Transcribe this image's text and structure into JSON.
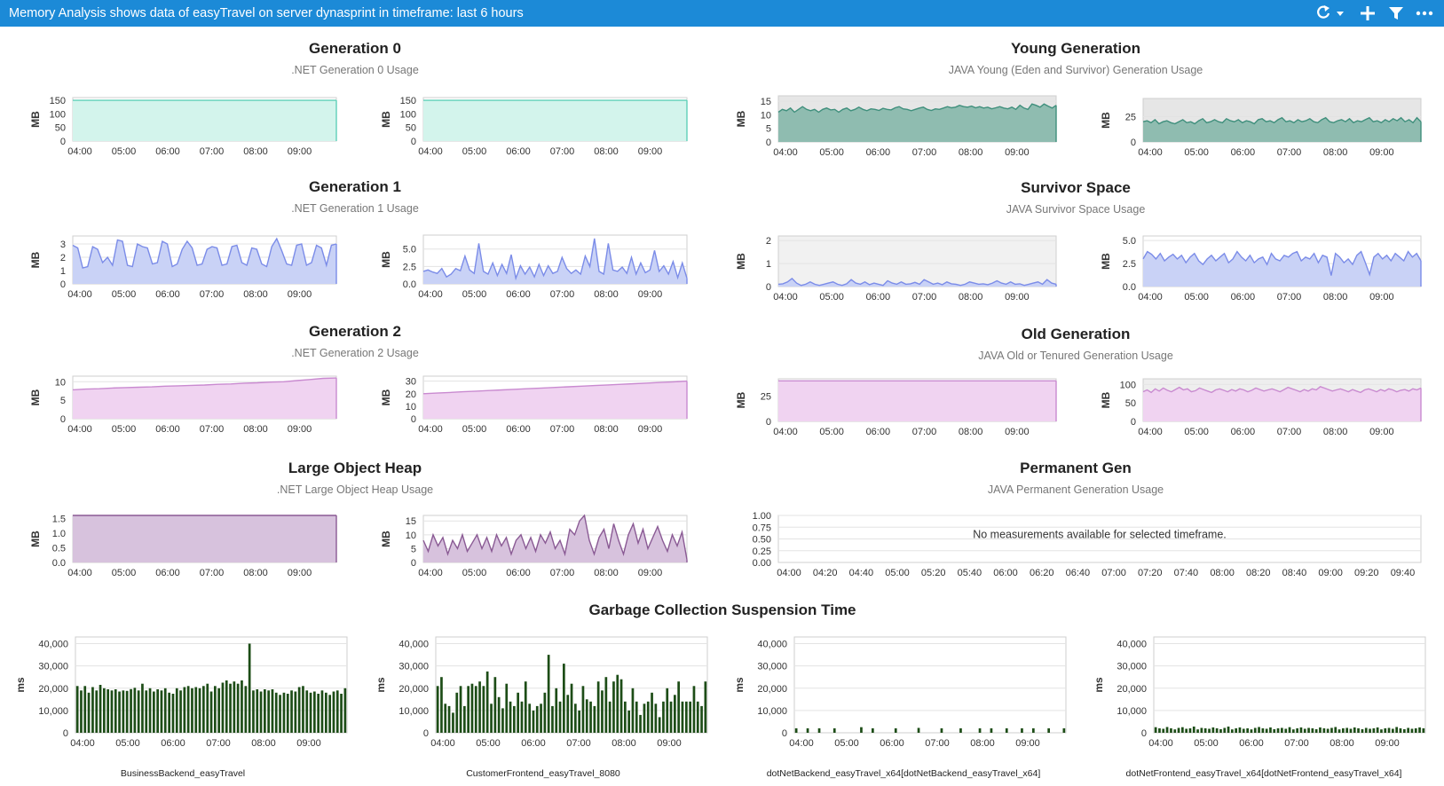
{
  "window": {
    "title": "Memory Analysis shows data of easyTravel on server dynasprint in timeframe: last 6 hours",
    "icons": [
      "refresh-icon",
      "dropdown-caret-icon",
      "plus-icon",
      "filter-icon",
      "more-icon"
    ]
  },
  "sections": {
    "gen0": {
      "title": "Generation 0",
      "subtitle": ".NET Generation 0 Usage"
    },
    "young": {
      "title": "Young Generation",
      "subtitle": "JAVA Young (Eden and Survivor) Generation Usage"
    },
    "gen1": {
      "title": "Generation 1",
      "subtitle": ".NET Generation 1 Usage"
    },
    "survivor": {
      "title": "Survivor Space",
      "subtitle": "JAVA Survivor Space Usage"
    },
    "gen2": {
      "title": "Generation 2",
      "subtitle": ".NET Generation 2 Usage"
    },
    "old": {
      "title": "Old Generation",
      "subtitle": "JAVA Old or Tenured Generation Usage"
    },
    "loh": {
      "title": "Large Object Heap",
      "subtitle": ".NET Large Object Heap Usage"
    },
    "perm": {
      "title": "Permanent Gen",
      "subtitle": "JAVA Permanent Generation Usage"
    },
    "gc": {
      "title": "Garbage Collection Suspension Time"
    }
  },
  "colors": {
    "titlebar": "#1c8ad7",
    "gen0_fill": "#d3f4ec",
    "gen0_line": "#5fd0b8",
    "young_fill": "#8fbcb0",
    "young_line": "#3f8f7c",
    "young_bg": "#e6e6e6",
    "gen1_fill": "#c9d2f6",
    "gen1_line": "#7b8ce8",
    "gen2_fill": "#f0d3f1",
    "gen2_line": "#c98ad0",
    "loh_fill": "#d7c2dd",
    "loh_line": "#8a5a94",
    "gc_bar": "#1d4d17"
  },
  "chart_data": [
    {
      "id": "gen0-a",
      "type": "area",
      "ylabel": "MB",
      "yticks": [
        "0",
        "50",
        "100",
        "150"
      ],
      "ylim": [
        0,
        160
      ],
      "xticks": [
        "04:00",
        "05:00",
        "06:00",
        "07:00",
        "08:00",
        "09:00"
      ],
      "values": [
        150,
        150
      ]
    },
    {
      "id": "gen0-b",
      "type": "area",
      "ylabel": "MB",
      "yticks": [
        "0",
        "50",
        "100",
        "150"
      ],
      "ylim": [
        0,
        160
      ],
      "xticks": [
        "04:00",
        "05:00",
        "06:00",
        "07:00",
        "08:00",
        "09:00"
      ],
      "values": [
        150,
        150
      ]
    },
    {
      "id": "young-a",
      "type": "area",
      "ylabel": "MB",
      "yticks": [
        "0",
        "5",
        "10",
        "15"
      ],
      "ylim": [
        0,
        17
      ],
      "xticks": [
        "04:00",
        "05:00",
        "06:00",
        "07:00",
        "08:00",
        "09:00"
      ],
      "values": [
        11,
        12,
        11.5,
        12.5,
        11,
        12,
        13,
        12,
        11.5,
        12,
        11,
        12,
        12.5,
        11.8,
        12,
        11,
        12,
        12.5,
        11.5,
        12,
        12.8,
        12,
        11.5,
        12.2,
        12,
        11.6,
        12.4,
        12,
        11.8,
        12.6,
        13,
        12.2,
        12,
        11.5,
        12,
        12.5,
        12.8,
        12,
        11.6,
        12.2,
        12,
        12.5,
        13,
        12.6,
        12.8,
        13.5,
        13,
        12.8,
        13.2,
        12.6,
        13,
        12.5,
        12.8,
        12.2,
        12.6,
        13,
        12.5,
        12.2,
        12.8,
        12,
        13.5,
        12.5,
        12,
        14,
        13.5,
        12.8,
        14,
        13.2,
        12.5,
        13.5
      ]
    },
    {
      "id": "young-b",
      "type": "area",
      "ylabel": "MB",
      "yticks": [
        "0",
        "25"
      ],
      "ylim": [
        0,
        43
      ],
      "xticks": [
        "04:00",
        "05:00",
        "06:00",
        "07:00",
        "08:00",
        "09:00"
      ],
      "values": [
        20,
        21,
        19,
        22,
        18,
        20,
        21,
        19,
        18,
        20,
        22,
        19,
        20,
        18,
        21,
        23,
        19,
        20,
        22,
        20,
        19,
        23,
        21,
        20,
        22,
        19,
        21,
        20,
        18,
        22,
        23,
        20,
        21,
        19,
        22,
        24,
        20,
        21,
        19,
        22,
        20,
        21,
        23,
        20,
        19,
        22,
        24,
        20,
        19,
        21,
        22,
        20,
        23,
        19,
        21,
        20,
        22,
        24,
        20,
        21,
        19,
        22,
        20,
        23,
        21,
        24,
        20,
        22,
        19,
        24,
        20
      ]
    },
    {
      "id": "gen1-a",
      "type": "area",
      "ylabel": "MB",
      "yticks": [
        "0",
        "1",
        "2",
        "3"
      ],
      "ylim": [
        0,
        3.6
      ],
      "xticks": [
        "04:00",
        "05:00",
        "06:00",
        "07:00",
        "08:00",
        "09:00"
      ],
      "values": [
        2.9,
        2.7,
        1.2,
        1.3,
        2.8,
        2.6,
        1.6,
        2.0,
        1.4,
        3.3,
        3.2,
        1.4,
        1.3,
        3.0,
        2.8,
        2.7,
        1.5,
        1.6,
        3.2,
        3.0,
        1.3,
        1.5,
        2.6,
        3.2,
        2.7,
        1.4,
        1.5,
        2.6,
        2.8,
        2.7,
        1.4,
        1.5,
        2.8,
        2.9,
        1.6,
        1.4,
        2.7,
        2.6,
        1.5,
        1.3,
        2.8,
        3.4,
        2.5,
        1.5,
        1.4,
        2.9,
        3.0,
        1.4,
        1.6,
        2.9,
        2.7,
        1.4,
        2.9,
        3.0
      ]
    },
    {
      "id": "gen1-b",
      "type": "area",
      "ylabel": "MB",
      "yticks": [
        "0.0",
        "2.5",
        "5.0"
      ],
      "ylim": [
        0,
        7
      ],
      "xticks": [
        "04:00",
        "05:00",
        "06:00",
        "07:00",
        "08:00",
        "09:00"
      ],
      "values": [
        1.8,
        2.0,
        1.7,
        1.5,
        2.2,
        1.0,
        1.4,
        2.2,
        1.9,
        4.0,
        2.0,
        1.5,
        5.8,
        1.8,
        1.4,
        3.0,
        1.2,
        2.8,
        1.5,
        4.2,
        0.8,
        2.6,
        1.4,
        2.4,
        1.0,
        2.8,
        1.2,
        2.6,
        1.5,
        1.8,
        3.8,
        2.2,
        1.5,
        2.0,
        1.4,
        4.0,
        2.5,
        6.5,
        1.8,
        1.4,
        5.8,
        2.0,
        1.8,
        2.4,
        1.5,
        3.8,
        1.4,
        3.0,
        1.6,
        2.0,
        4.8,
        1.8,
        2.6,
        1.4,
        3.2,
        0.9,
        3.0,
        0.8
      ]
    },
    {
      "id": "survivor-a",
      "type": "area",
      "ylabel": "MB",
      "yticks": [
        "0",
        "1",
        "2"
      ],
      "ylim": [
        0,
        2.2
      ],
      "xticks": [
        "04:00",
        "05:00",
        "06:00",
        "07:00",
        "08:00",
        "09:00"
      ],
      "values": [
        0.1,
        0.12,
        0.2,
        0.35,
        0.15,
        0.05,
        0.1,
        0.2,
        0.1,
        0.05,
        0.1,
        0.15,
        0.2,
        0.1,
        0.05,
        0.12,
        0.3,
        0.15,
        0.1,
        0.2,
        0.08,
        0.15,
        0.1,
        0.05,
        0.25,
        0.15,
        0.1,
        0.2,
        0.1,
        0.12,
        0.18,
        0.1,
        0.3,
        0.2,
        0.1,
        0.15,
        0.08,
        0.2,
        0.12,
        0.1,
        0.05,
        0.1,
        0.2,
        0.15,
        0.1,
        0.12,
        0.08,
        0.15,
        0.25,
        0.15,
        0.1,
        0.2,
        0.1,
        0.12,
        0.05,
        0.1,
        0.15,
        0.2,
        0.1,
        0.3,
        0.15,
        0.1
      ]
    },
    {
      "id": "survivor-b",
      "type": "area",
      "ylabel": "MB",
      "yticks": [
        "0.0",
        "2.5",
        "5.0"
      ],
      "ylim": [
        0,
        5.5
      ],
      "xticks": [
        "04:00",
        "05:00",
        "06:00",
        "07:00",
        "08:00",
        "09:00"
      ],
      "values": [
        3.0,
        3.8,
        3.5,
        3.0,
        3.6,
        2.8,
        3.2,
        3.5,
        3.0,
        3.4,
        2.6,
        3.2,
        3.6,
        2.8,
        2.4,
        3.0,
        3.4,
        2.8,
        3.2,
        3.6,
        2.6,
        3.0,
        3.8,
        3.2,
        2.8,
        3.4,
        2.6,
        3.0,
        3.2,
        2.4,
        3.6,
        3.0,
        2.8,
        3.4,
        3.2,
        3.6,
        3.8,
        2.8,
        3.2,
        3.0,
        3.6,
        2.6,
        3.4,
        3.2,
        1.2,
        3.6,
        3.2,
        2.6,
        3.0,
        2.4,
        3.4,
        3.8,
        2.6,
        1.3,
        3.2,
        3.6,
        3.0,
        3.4,
        2.8,
        3.6,
        3.2,
        2.8,
        3.8,
        3.2,
        3.6,
        2.8
      ]
    },
    {
      "id": "gen2-a",
      "type": "area",
      "ylabel": "MB",
      "yticks": [
        "0",
        "5",
        "10"
      ],
      "ylim": [
        0,
        11.5
      ],
      "xticks": [
        "04:00",
        "05:00",
        "06:00",
        "07:00",
        "08:00",
        "09:00"
      ],
      "values": [
        7.8,
        8.0,
        8.1,
        8.3,
        8.4,
        8.5,
        8.6,
        8.8,
        8.9,
        9.0,
        9.1,
        9.3,
        9.4,
        9.6,
        9.7,
        9.9,
        10.0,
        10.3,
        10.6,
        10.9,
        11.0
      ]
    },
    {
      "id": "gen2-b",
      "type": "area",
      "ylabel": "MB",
      "yticks": [
        "0",
        "10",
        "20",
        "30"
      ],
      "ylim": [
        0,
        34
      ],
      "xticks": [
        "04:00",
        "05:00",
        "06:00",
        "07:00",
        "08:00",
        "09:00"
      ],
      "values": [
        20,
        20.5,
        21,
        21.5,
        22,
        22.5,
        23,
        23.5,
        24,
        24.5,
        25,
        25.5,
        26,
        26.5,
        27,
        27.5,
        28,
        28.5,
        29,
        29.5,
        30
      ]
    },
    {
      "id": "old-a",
      "type": "area",
      "ylabel": "MB",
      "yticks": [
        "0",
        "25"
      ],
      "ylim": [
        0,
        42
      ],
      "xticks": [
        "04:00",
        "05:00",
        "06:00",
        "07:00",
        "08:00",
        "09:00"
      ],
      "values": [
        40,
        40
      ]
    },
    {
      "id": "old-b",
      "type": "area",
      "ylabel": "MB",
      "yticks": [
        "0",
        "50",
        "100"
      ],
      "ylim": [
        0,
        115
      ],
      "xticks": [
        "04:00",
        "05:00",
        "06:00",
        "07:00",
        "08:00",
        "09:00"
      ],
      "values": [
        80,
        85,
        78,
        88,
        82,
        90,
        84,
        80,
        86,
        92,
        85,
        88,
        80,
        83,
        90,
        86,
        82,
        78,
        85,
        88,
        84,
        80,
        86,
        82,
        88,
        85,
        80,
        84,
        90,
        86,
        82,
        85,
        88,
        84,
        80,
        86,
        92,
        88,
        84,
        80,
        86,
        82,
        88,
        85,
        94,
        90,
        86,
        82,
        85,
        88,
        84,
        80,
        86,
        82,
        78,
        85,
        88,
        84,
        80,
        86,
        82,
        88,
        85,
        80,
        84,
        86,
        82,
        88,
        85,
        90
      ]
    },
    {
      "id": "loh-a",
      "type": "area",
      "ylabel": "MB",
      "yticks": [
        "0.0",
        "0.5",
        "1.0",
        "1.5"
      ],
      "ylim": [
        0,
        1.6
      ],
      "xticks": [
        "04:00",
        "05:00",
        "06:00",
        "07:00",
        "08:00",
        "09:00"
      ],
      "values": [
        1.6,
        1.6
      ]
    },
    {
      "id": "loh-b",
      "type": "area",
      "ylabel": "MB",
      "yticks": [
        "0",
        "5",
        "10",
        "15"
      ],
      "ylim": [
        0,
        17
      ],
      "xticks": [
        "04:00",
        "05:00",
        "06:00",
        "07:00",
        "08:00",
        "09:00"
      ],
      "values": [
        8,
        4,
        10,
        6,
        9,
        3,
        8,
        5,
        10,
        4,
        7,
        10,
        5,
        9,
        4,
        10,
        6,
        9,
        3,
        8,
        10,
        5,
        9,
        4,
        10,
        7,
        11,
        5,
        8,
        3,
        12,
        10,
        15,
        17,
        8,
        3,
        9,
        12,
        5,
        14,
        8,
        3,
        10,
        14,
        7,
        12,
        5,
        9,
        13,
        8,
        4,
        10,
        6,
        11,
        1
      ]
    },
    {
      "id": "perm",
      "type": "area",
      "ylabel": "",
      "message": "No measurements available for selected timeframe.",
      "yticks": [
        "0.00",
        "0.25",
        "0.50",
        "0.75",
        "1.00"
      ],
      "ylim": [
        0,
        1
      ],
      "xticks": [
        "04:00",
        "04:20",
        "04:40",
        "05:00",
        "05:20",
        "05:40",
        "06:00",
        "06:20",
        "06:40",
        "07:00",
        "07:20",
        "07:40",
        "08:00",
        "08:20",
        "08:40",
        "09:00",
        "09:20",
        "09:40"
      ],
      "values": []
    },
    {
      "id": "gc-1",
      "type": "bar",
      "ylabel": "ms",
      "label": "BusinessBackend_easyTravel",
      "yticks": [
        "0",
        "10,000",
        "20,000",
        "30,000",
        "40,000"
      ],
      "ylim": [
        0,
        43000
      ],
      "xticks": [
        "04:00",
        "05:00",
        "06:00",
        "07:00",
        "08:00",
        "09:00"
      ],
      "values": [
        21000,
        19000,
        21000,
        18000,
        20500,
        19000,
        21500,
        20000,
        19500,
        19000,
        19500,
        18500,
        19000,
        18800,
        19600,
        20200,
        19000,
        22000,
        19000,
        20000,
        18500,
        19500,
        19000,
        20000,
        18000,
        17500,
        20000,
        19000,
        20500,
        21000,
        20000,
        20500,
        20000,
        21000,
        22000,
        18500,
        21000,
        20000,
        22500,
        23500,
        22000,
        23000,
        22000,
        23500,
        21000,
        40000,
        19000,
        19500,
        18500,
        19500,
        19000,
        19500,
        18000,
        17000,
        18000,
        17500,
        19000,
        18500,
        20500,
        21000,
        19000,
        18000,
        18500,
        17500,
        19000,
        18000,
        17000,
        18500,
        19000,
        17500,
        20000
      ]
    },
    {
      "id": "gc-2",
      "type": "bar",
      "ylabel": "ms",
      "label": "CustomerFrontend_easyTravel_8080",
      "yticks": [
        "0",
        "10,000",
        "20,000",
        "30,000",
        "40,000"
      ],
      "ylim": [
        0,
        43000
      ],
      "xticks": [
        "04:00",
        "05:00",
        "06:00",
        "07:00",
        "08:00",
        "09:00"
      ],
      "values": [
        21000,
        25000,
        13000,
        12000,
        9000,
        18000,
        21000,
        12000,
        21000,
        22000,
        21000,
        23000,
        21000,
        27500,
        13000,
        25000,
        16000,
        11000,
        22000,
        14000,
        12000,
        18000,
        14000,
        23000,
        13000,
        10000,
        12000,
        13000,
        18000,
        35000,
        12000,
        20000,
        14000,
        31000,
        17000,
        22000,
        13000,
        10000,
        21000,
        15000,
        14000,
        12000,
        23000,
        19000,
        25000,
        14000,
        23000,
        26000,
        24000,
        14000,
        10000,
        20000,
        14000,
        8000,
        13000,
        14000,
        18000,
        13000,
        7000,
        14000,
        20000,
        14000,
        17000,
        23000,
        14000,
        14000,
        14000,
        21000,
        14000,
        12000,
        23000
      ]
    },
    {
      "id": "gc-3",
      "type": "bar",
      "ylabel": "ms",
      "label": "dotNetBackend_easyTravel_x64[dotNetBackend_easyTravel_x64]",
      "yticks": [
        "0",
        "10,000",
        "20,000",
        "30,000",
        "40,000"
      ],
      "ylim": [
        0,
        43000
      ],
      "xticks": [
        "04:00",
        "05:00",
        "06:00",
        "07:00",
        "08:00",
        "09:00"
      ],
      "values": [
        2000,
        0,
        0,
        2000,
        0,
        0,
        2000,
        0,
        0,
        0,
        2000,
        0,
        0,
        0,
        0,
        0,
        0,
        2500,
        0,
        0,
        2000,
        0,
        0,
        0,
        0,
        0,
        2000,
        0,
        0,
        0,
        0,
        0,
        2200,
        0,
        0,
        0,
        0,
        0,
        2000,
        0,
        0,
        0,
        0,
        2000,
        0,
        0,
        0,
        0,
        2000,
        0,
        0,
        2000,
        0,
        0,
        0,
        2000,
        0,
        0,
        0,
        2000,
        0,
        0,
        2000,
        0,
        0,
        0,
        2000,
        0,
        0,
        0,
        2000
      ]
    },
    {
      "id": "gc-4",
      "type": "bar",
      "ylabel": "ms",
      "label": "dotNetFrontend_easyTravel_x64[dotNetFrontend_easyTravel_x64]",
      "yticks": [
        "0",
        "10,000",
        "20,000",
        "30,000",
        "40,000"
      ],
      "ylim": [
        0,
        43000
      ],
      "xticks": [
        "04:00",
        "05:00",
        "06:00",
        "07:00",
        "08:00",
        "09:00"
      ],
      "values": [
        2500,
        2000,
        1800,
        2600,
        2000,
        1500,
        2200,
        2500,
        1800,
        2000,
        2800,
        1500,
        2200,
        2000,
        1800,
        2400,
        2000,
        1600,
        2200,
        2800,
        1500,
        2000,
        2400,
        1800,
        2000,
        1500,
        2200,
        2600,
        2000,
        1800,
        2400,
        1600,
        2000,
        2200,
        1800,
        2500,
        1500,
        2000,
        2400,
        1800,
        2200,
        2000,
        1600,
        2400,
        2000,
        1800,
        2200,
        2600,
        1500,
        2000,
        2200,
        1800,
        2400,
        2000,
        1600,
        2200,
        1800,
        2000,
        2400,
        1500,
        2000,
        2200,
        1800,
        2600,
        2000,
        1600,
        2200,
        1800,
        2000,
        2400,
        2000
      ]
    }
  ]
}
